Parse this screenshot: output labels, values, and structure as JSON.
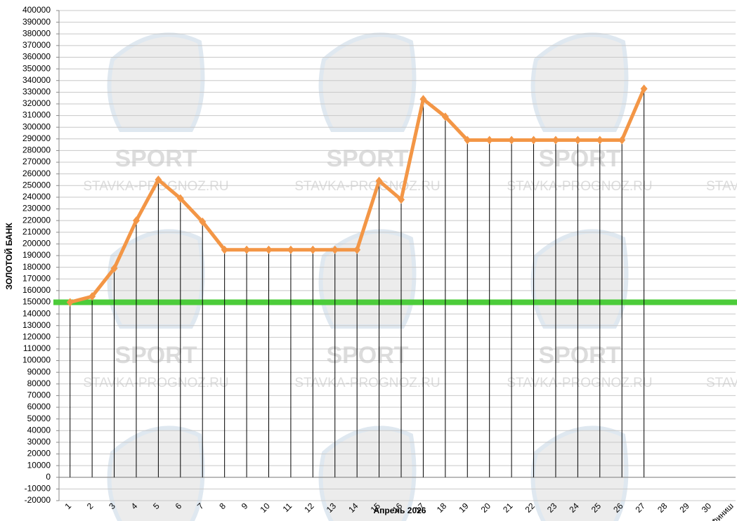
{
  "chart_data": {
    "type": "line",
    "y_label": "ЗОЛОТОЙ БАНК",
    "x_label": "Апрель 2026",
    "categories": [
      "1",
      "2",
      "3",
      "4",
      "5",
      "6",
      "7",
      "8",
      "9",
      "10",
      "11",
      "12",
      "13",
      "14",
      "15",
      "16",
      "17",
      "18",
      "19",
      "20",
      "21",
      "22",
      "23",
      "24",
      "25",
      "26",
      "27",
      "28",
      "29",
      "30",
      "Финиш"
    ],
    "series": [
      {
        "color": "#f39646",
        "values": [
          150000,
          155000,
          179000,
          220000,
          255000,
          239000,
          219000,
          195000,
          195000,
          195000,
          195000,
          195000,
          195000,
          195000,
          254000,
          238000,
          324000,
          309000,
          289000,
          289000,
          289000,
          289000,
          289000,
          289000,
          289000,
          289000,
          333000,
          null,
          null,
          null,
          null
        ]
      }
    ],
    "reference_line": {
      "value": 150000,
      "color": "#4ccc3a"
    },
    "ylim": [
      -20000,
      400000
    ],
    "yticks": [
      -20000,
      -10000,
      0,
      10000,
      20000,
      30000,
      40000,
      50000,
      60000,
      70000,
      80000,
      90000,
      100000,
      110000,
      120000,
      130000,
      140000,
      150000,
      160000,
      170000,
      180000,
      190000,
      200000,
      210000,
      220000,
      230000,
      240000,
      250000,
      260000,
      270000,
      280000,
      290000,
      300000,
      310000,
      320000,
      330000,
      340000,
      350000,
      360000,
      370000,
      380000,
      390000,
      400000
    ],
    "grid": true,
    "drop_lines": true,
    "watermark": {
      "logo": "SPORT",
      "site": "STAVKA-PROGNOZ.RU"
    }
  }
}
